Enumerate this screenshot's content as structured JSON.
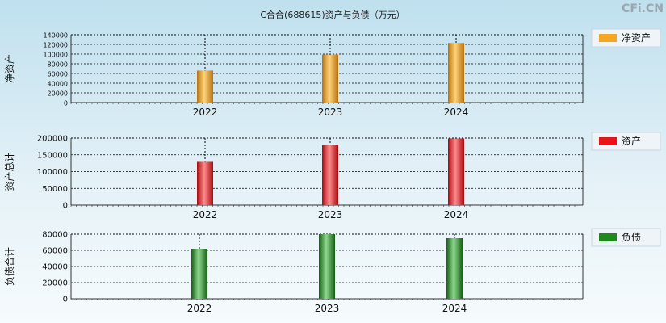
{
  "header": {
    "title": "C合合(688615)资产与负债（万元）",
    "brand": "CFi.CN"
  },
  "colors": {
    "equity": "#f5a623",
    "assets": "#e8141a",
    "liabilities": "#1e8a1e"
  },
  "chart_data": [
    {
      "type": "bar",
      "categories": [
        "2022",
        "2023",
        "2024"
      ],
      "series": [
        {
          "name": "净资产",
          "values": [
            66000,
            99000,
            123000
          ]
        }
      ],
      "ylabel": "净资产",
      "ylim": [
        0,
        140000
      ],
      "yticks": [
        0,
        20000,
        40000,
        60000,
        80000,
        100000,
        120000,
        140000
      ],
      "grid": true,
      "legend": "right"
    },
    {
      "type": "bar",
      "categories": [
        "2022",
        "2023",
        "2024"
      ],
      "series": [
        {
          "name": "资产",
          "values": [
            129000,
            179000,
            199000
          ]
        }
      ],
      "ylabel": "资产总计",
      "ylim": [
        0,
        200000
      ],
      "yticks": [
        0,
        50000,
        100000,
        150000,
        200000
      ],
      "grid": true,
      "legend": "right"
    },
    {
      "type": "bar",
      "categories": [
        "2022",
        "2023",
        "2024"
      ],
      "series": [
        {
          "name": "负债",
          "values": [
            62000,
            80000,
            75000
          ]
        }
      ],
      "ylabel": "负债合计",
      "ylim": [
        0,
        80000
      ],
      "yticks": [
        0,
        20000,
        40000,
        60000,
        80000
      ],
      "grid": true,
      "legend": "right"
    }
  ]
}
